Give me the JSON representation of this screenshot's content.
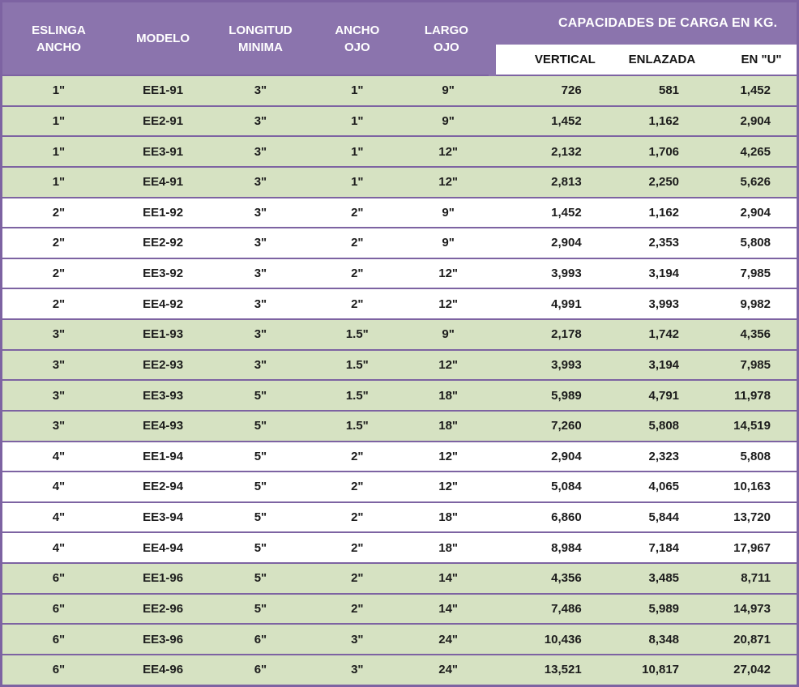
{
  "colors": {
    "header_purple": "#8B74AD",
    "border_purple": "#7D63A2",
    "band_green": "#D6E2C2",
    "band_white": "#FFFFFF",
    "header_text": "#FFFFFF",
    "body_text": "#1C1C1C"
  },
  "table": {
    "headers": {
      "col1": "ESLINGA\nANCHO",
      "col2": "MODELO",
      "col3": "LONGITUD\nMINIMA",
      "col4": "ANCHO\nOJO",
      "col5": "LARGO\nOJO",
      "capacidades": "CAPACIDADES DE CARGA EN KG.",
      "sub": [
        "VERTICAL",
        "ENLAZADA",
        "EN \"U\""
      ]
    },
    "rows": [
      [
        "1\"",
        "EE1-91",
        "3\"",
        "1\"",
        "9\"",
        "726",
        "581",
        "1,452"
      ],
      [
        "1\"",
        "EE2-91",
        "3\"",
        "1\"",
        "9\"",
        "1,452",
        "1,162",
        "2,904"
      ],
      [
        "1\"",
        "EE3-91",
        "3\"",
        "1\"",
        "12\"",
        "2,132",
        "1,706",
        "4,265"
      ],
      [
        "1\"",
        "EE4-91",
        "3\"",
        "1\"",
        "12\"",
        "2,813",
        "2,250",
        "5,626"
      ],
      [
        "2\"",
        "EE1-92",
        "3\"",
        "2\"",
        "9\"",
        "1,452",
        "1,162",
        "2,904"
      ],
      [
        "2\"",
        "EE2-92",
        "3\"",
        "2\"",
        "9\"",
        "2,904",
        "2,353",
        "5,808"
      ],
      [
        "2\"",
        "EE3-92",
        "3\"",
        "2\"",
        "12\"",
        "3,993",
        "3,194",
        "7,985"
      ],
      [
        "2\"",
        "EE4-92",
        "3\"",
        "2\"",
        "12\"",
        "4,991",
        "3,993",
        "9,982"
      ],
      [
        "3\"",
        "EE1-93",
        "3\"",
        "1.5\"",
        "9\"",
        "2,178",
        "1,742",
        "4,356"
      ],
      [
        "3\"",
        "EE2-93",
        "3\"",
        "1.5\"",
        "12\"",
        "3,993",
        "3,194",
        "7,985"
      ],
      [
        "3\"",
        "EE3-93",
        "5\"",
        "1.5\"",
        "18\"",
        "5,989",
        "4,791",
        "11,978"
      ],
      [
        "3\"",
        "EE4-93",
        "5\"",
        "1.5\"",
        "18\"",
        "7,260",
        "5,808",
        "14,519"
      ],
      [
        "4\"",
        "EE1-94",
        "5\"",
        "2\"",
        "12\"",
        "2,904",
        "2,323",
        "5,808"
      ],
      [
        "4\"",
        "EE2-94",
        "5\"",
        "2\"",
        "12\"",
        "5,084",
        "4,065",
        "10,163"
      ],
      [
        "4\"",
        "EE3-94",
        "5\"",
        "2\"",
        "18\"",
        "6,860",
        "5,844",
        "13,720"
      ],
      [
        "4\"",
        "EE4-94",
        "5\"",
        "2\"",
        "18\"",
        "8,984",
        "7,184",
        "17,967"
      ],
      [
        "6\"",
        "EE1-96",
        "5\"",
        "2\"",
        "14\"",
        "4,356",
        "3,485",
        "8,711"
      ],
      [
        "6\"",
        "EE2-96",
        "5\"",
        "2\"",
        "14\"",
        "7,486",
        "5,989",
        "14,973"
      ],
      [
        "6\"",
        "EE3-96",
        "6\"",
        "3\"",
        "24\"",
        "10,436",
        "8,348",
        "20,871"
      ],
      [
        "6\"",
        "EE4-96",
        "6\"",
        "3\"",
        "24\"",
        "13,521",
        "10,817",
        "27,042"
      ]
    ]
  }
}
